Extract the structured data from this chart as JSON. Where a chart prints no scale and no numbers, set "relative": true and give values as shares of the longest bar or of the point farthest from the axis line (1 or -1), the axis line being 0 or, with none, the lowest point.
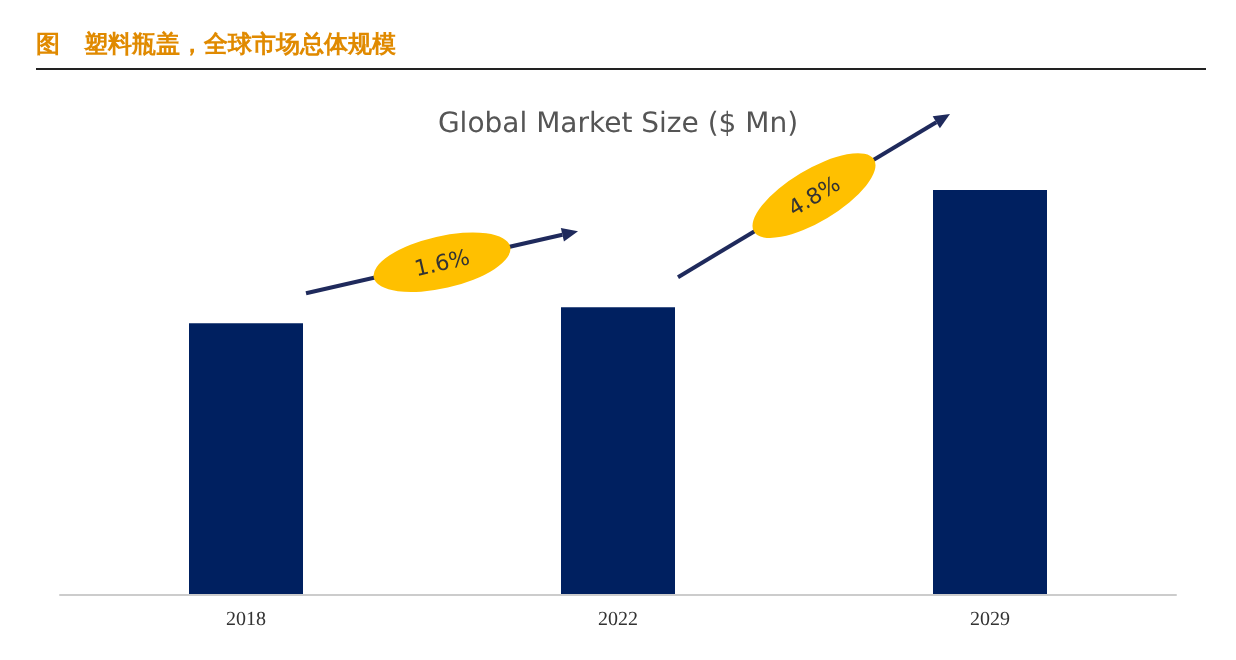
{
  "chart_data": {
    "type": "bar",
    "title": "图　塑料瓶盖，全球市场总体规模",
    "subtitle": "Global Market Size ($ Mn)",
    "categories": [
      "2018",
      "2022",
      "2029"
    ],
    "values": [
      0.67,
      0.71,
      1
    ],
    "color": "#002060",
    "relative": true,
    "annotations": [
      "1.6%",
      "4.8%"
    ]
  }
}
